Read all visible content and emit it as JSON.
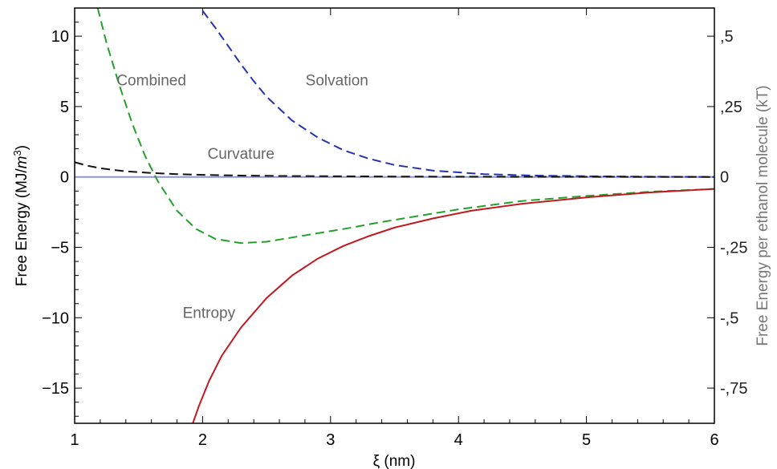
{
  "chart_data": {
    "type": "line",
    "title": "",
    "xlabel": "ξ (nm)",
    "ylabel": "Free Energy (MJ/m³)",
    "ylabel_parts": {
      "prefix": "Free Energy (MJ/",
      "italic": "m",
      "sup": "3",
      "suffix": ")"
    },
    "y2label": "Free Energy per ethanol molecule (kT)",
    "xlim": [
      1,
      6
    ],
    "ylim": [
      -17.5,
      12
    ],
    "y2lim": [
      -0.875,
      0.6
    ],
    "grid": false,
    "x_ticks": [
      1,
      2,
      3,
      4,
      5,
      6
    ],
    "x_tick_labels": [
      "1",
      "2",
      "3",
      "4",
      "5",
      "6"
    ],
    "y_ticks": [
      10,
      5,
      0,
      -5,
      -10,
      -15
    ],
    "y_tick_labels": [
      "10",
      "5",
      "0",
      "−5",
      "−10",
      "−15"
    ],
    "y2_ticks": [
      0.5,
      0.25,
      0,
      -0.25,
      -0.5,
      -0.75
    ],
    "y2_tick_labels": [
      ",5",
      ",25",
      "0",
      "-,25",
      "-,5",
      "-,75"
    ],
    "series": [
      {
        "name": "Solvation",
        "color": "#2433b0",
        "dash": true,
        "x": [
          2.0,
          2.1,
          2.2,
          2.3,
          2.4,
          2.5,
          2.7,
          2.9,
          3.1,
          3.3,
          3.5,
          3.8,
          4.2,
          4.6,
          5.0,
          5.5,
          6.0
        ],
        "y": [
          11.8,
          10.6,
          9.3,
          8.0,
          6.8,
          5.7,
          4.0,
          2.8,
          1.9,
          1.3,
          0.85,
          0.45,
          0.2,
          0.1,
          0.05,
          0.02,
          0.0
        ]
      },
      {
        "name": "Combined",
        "color": "#22a12a",
        "dash": true,
        "x": [
          1.18,
          1.25,
          1.35,
          1.45,
          1.55,
          1.65,
          1.8,
          1.95,
          2.1,
          2.3,
          2.5,
          2.7,
          2.9,
          3.1,
          3.4,
          3.7,
          4.0,
          4.5,
          5.0,
          5.5,
          6.0
        ],
        "y": [
          12.0,
          9.5,
          6.5,
          3.8,
          1.5,
          -0.3,
          -2.4,
          -3.7,
          -4.4,
          -4.7,
          -4.6,
          -4.3,
          -4.0,
          -3.7,
          -3.2,
          -2.75,
          -2.3,
          -1.7,
          -1.35,
          -1.05,
          -0.85
        ]
      },
      {
        "name": "Curvature",
        "color": "#111111",
        "dash": true,
        "x": [
          1.0,
          1.1,
          1.2,
          1.3,
          1.4,
          1.6,
          1.8,
          2.0,
          2.3,
          2.6,
          3.0,
          3.5,
          4.0,
          5.0,
          6.0
        ],
        "y": [
          1.05,
          0.8,
          0.62,
          0.5,
          0.4,
          0.28,
          0.2,
          0.15,
          0.1,
          0.07,
          0.05,
          0.03,
          0.02,
          0.01,
          0.0
        ]
      },
      {
        "name": "Entropy",
        "color": "#c0191f",
        "dash": false,
        "x": [
          1.92,
          1.97,
          2.05,
          2.15,
          2.3,
          2.5,
          2.7,
          2.9,
          3.1,
          3.3,
          3.5,
          3.8,
          4.1,
          4.5,
          5.0,
          5.5,
          6.0
        ],
        "y": [
          -17.6,
          -16.3,
          -14.5,
          -12.7,
          -10.7,
          -8.6,
          -7.0,
          -5.8,
          -4.9,
          -4.2,
          -3.6,
          -2.95,
          -2.4,
          -1.9,
          -1.45,
          -1.1,
          -0.85
        ]
      }
    ],
    "annotations": [
      {
        "text": "Combined",
        "x": 1.6,
        "y": 6.5
      },
      {
        "text": "Solvation",
        "x": 3.05,
        "y": 6.5
      },
      {
        "text": "Curvature",
        "x": 2.3,
        "y": 1.3
      },
      {
        "text": "Entropy",
        "x": 2.05,
        "y": -10.0
      }
    ],
    "zero_line_color": "#8b96c9"
  }
}
